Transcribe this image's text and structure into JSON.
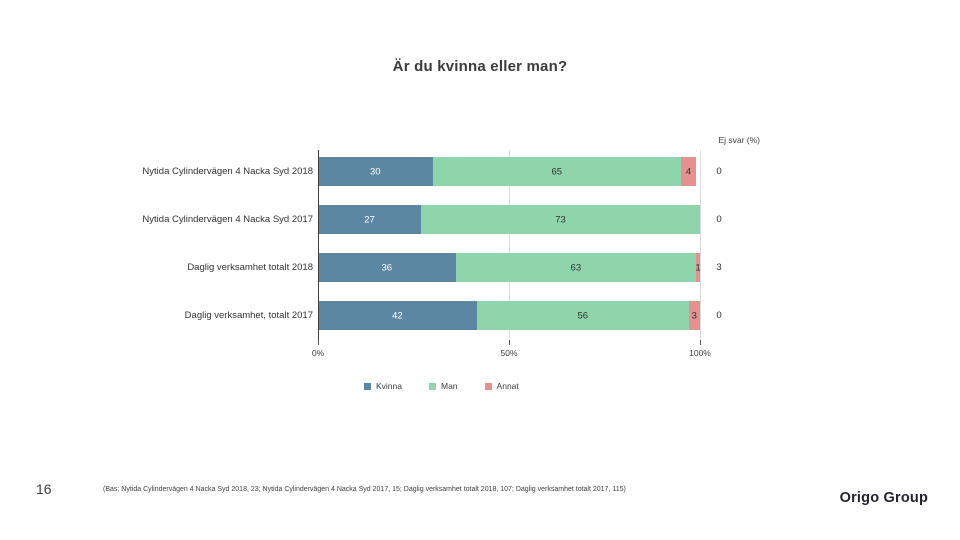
{
  "slide": {
    "title": "Är du kvinna eller man?",
    "page_number": "16",
    "footnote": "(Bas: Nytida Cylindervägen 4 Nacka Syd 2018, 23; Nytida Cylindervägen 4 Nacka Syd 2017, 15; Daglig verksamhet totalt 2018, 107; Daglig verksamhet totalt 2017, 115)",
    "logo_text": "Origo Group"
  },
  "chart_data": {
    "type": "bar",
    "orientation": "horizontal-stacked",
    "title": "Är du kvinna eller man?",
    "categories": [
      "Nytida Cylindervägen 4 Nacka Syd 2018",
      "Nytida Cylindervägen 4 Nacka Syd 2017",
      "Daglig verksamhet totalt 2018",
      "Daglig verksamhet, totalt 2017"
    ],
    "series": [
      {
        "name": "Kvinna",
        "color": "#5b87a3",
        "label_color": "#ffffff",
        "values": [
          30,
          27,
          36,
          42
        ]
      },
      {
        "name": "Man",
        "color": "#8ed5ab",
        "label_color": "#333333",
        "values": [
          65,
          73,
          63,
          56
        ]
      },
      {
        "name": "Annat",
        "color": "#e5918f",
        "label_color": "#333333",
        "values": [
          4,
          0,
          1,
          3
        ]
      }
    ],
    "extra_column": {
      "label": "Ej svar (%)",
      "values": [
        "0",
        "0",
        "3",
        "0"
      ]
    },
    "x_ticks": [
      {
        "label": "0%",
        "value": 0
      },
      {
        "label": "50%",
        "value": 50
      },
      {
        "label": "100%",
        "value": 100
      }
    ],
    "xlim": [
      0,
      100
    ],
    "grid": "vertical-major",
    "legend": [
      "Kvinna",
      "Man",
      "Annat"
    ],
    "legend_position": "bottom"
  }
}
